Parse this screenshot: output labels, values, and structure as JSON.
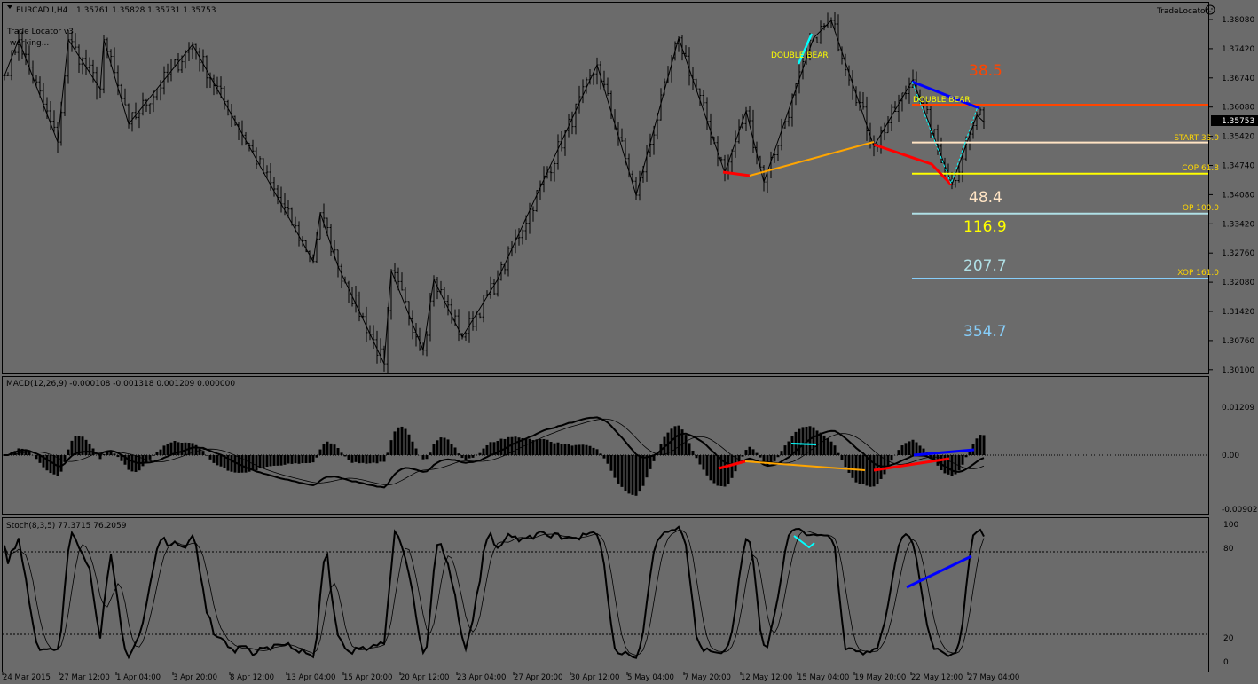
{
  "header": {
    "symbol": "EURCAD.I,H4",
    "ohlc": "1.35761 1.35828 1.35731 1.35753"
  },
  "indicator": {
    "name": "Trade Locator v3",
    "status": "working...",
    "brand": "TradeLocator",
    "brand_icon": "sad-face-icon"
  },
  "price_axis": {
    "ticks": [
      "1.38080",
      "1.37420",
      "1.36740",
      "1.36080",
      "1.35420",
      "1.34740",
      "1.34080",
      "1.33420",
      "1.32760",
      "1.32080",
      "1.31420",
      "1.30760",
      "1.30100"
    ],
    "current": "1.35753"
  },
  "levels": [
    {
      "label": "",
      "price": 1.3614,
      "color": "#ff4500"
    },
    {
      "label": "START 33.0",
      "price": 1.3528,
      "color": "#ffe4c4"
    },
    {
      "label": "COP 61.8",
      "price": 1.3457,
      "color": "#ffff00"
    },
    {
      "label": "OP 100.0",
      "price": 1.3366,
      "color": "#b0e0e6"
    },
    {
      "label": "XOP 161.0",
      "price": 1.3218,
      "color": "#87cefa"
    }
  ],
  "targets": [
    {
      "text": "38.5",
      "color": "#ff4500"
    },
    {
      "text": "48.4",
      "color": "#ffe4c4"
    },
    {
      "text": "116.9",
      "color": "#ffff00"
    },
    {
      "text": "207.7",
      "color": "#b0e0e6"
    },
    {
      "text": "354.7",
      "color": "#87cefa"
    }
  ],
  "patterns": [
    "DOUBLE BEAR",
    "DOUBLE BEAR"
  ],
  "zigzag": [
    [
      0,
      1.368
    ],
    [
      4,
      1.3762
    ],
    [
      15,
      1.3529
    ],
    [
      18,
      1.3762
    ],
    [
      27,
      1.365
    ],
    [
      28,
      1.3762
    ],
    [
      35,
      1.357
    ],
    [
      53,
      1.3751
    ],
    [
      87,
      1.3257
    ],
    [
      89,
      1.3368
    ],
    [
      94,
      1.3246
    ],
    [
      107,
      1.3024
    ],
    [
      109,
      1.3236
    ],
    [
      118,
      1.3055
    ],
    [
      121,
      1.3216
    ],
    [
      129,
      1.3085
    ],
    [
      139,
      1.3216
    ],
    [
      167,
      1.3705
    ],
    [
      178,
      1.3408
    ],
    [
      190,
      1.3766
    ],
    [
      203,
      1.3459
    ],
    [
      209,
      1.36
    ],
    [
      214,
      1.3438
    ],
    [
      228,
      1.3766
    ],
    [
      233,
      1.3806
    ],
    [
      245,
      1.3519
    ],
    [
      256,
      1.3671
    ],
    [
      267,
      1.3432
    ],
    [
      274,
      1.359
    ],
    [
      276,
      1.3575
    ]
  ],
  "macd": {
    "label": "MACD(12,26,9) -0.000108 -0.001318 0.001209 0.000000",
    "ticks": [
      "0.01209",
      "0.00",
      "-0.009022"
    ]
  },
  "stoch": {
    "label": "Stoch(8,3,5) 77.3715 76.2059",
    "ticks": [
      "100",
      "80",
      "20",
      "0"
    ]
  },
  "time_axis": [
    "24 Mar 2015",
    "27 Mar 12:00",
    "1 Apr 04:00",
    "3 Apr 20:00",
    "8 Apr 12:00",
    "13 Apr 04:00",
    "15 Apr 20:00",
    "20 Apr 12:00",
    "23 Apr 04:00",
    "27 Apr 20:00",
    "30 Apr 12:00",
    "5 May 04:00",
    "7 May 20:00",
    "12 May 12:00",
    "15 May 04:00",
    "19 May 20:00",
    "22 May 12:00",
    "27 May 04:00"
  ]
}
